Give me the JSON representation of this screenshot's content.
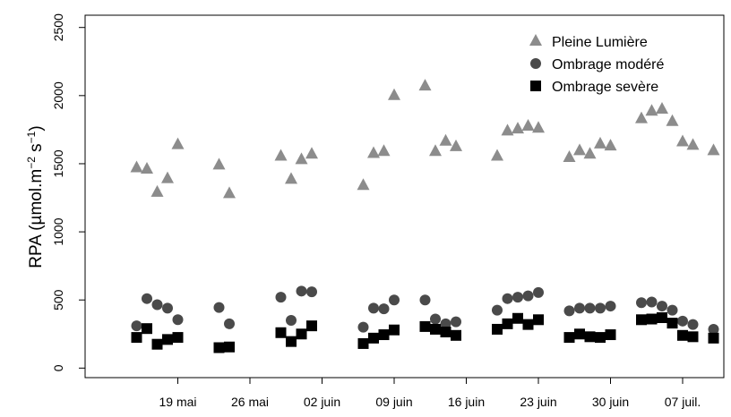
{
  "chart_data": {
    "type": "scatter",
    "title": "",
    "xlabel": "",
    "ylabel": "RPA (µmol.m⁻² s⁻¹)",
    "ylabel_parts": {
      "main": "RPA (",
      "mu": "µ",
      "unit": "mol.m",
      "exp1": "−2",
      "space": " s",
      "exp2": "−1",
      "close": ")"
    },
    "x_axis": {
      "type": "date",
      "range": [
        "2011-05-10",
        "2011-07-11"
      ],
      "ticks": [
        "2011-05-19",
        "2011-05-26",
        "2011-06-02",
        "2011-06-09",
        "2011-06-16",
        "2011-06-23",
        "2011-06-30",
        "2011-07-07"
      ],
      "tick_labels": [
        "19 mai",
        "26 mai",
        "02 juin",
        "09 juin",
        "16 juin",
        "23 juin",
        "30 juin",
        "07 juil."
      ]
    },
    "y_axis": {
      "range": [
        -70,
        2590
      ],
      "ticks": [
        0,
        500,
        1000,
        1500,
        2000,
        2500
      ],
      "tick_labels": [
        "0",
        "500",
        "1000",
        "1500",
        "2000",
        "2500"
      ]
    },
    "grid": false,
    "legend": {
      "position": "top-right"
    },
    "series": [
      {
        "name": "Pleine Lumière",
        "marker": "triangle",
        "color": "#8c8c8c",
        "points": [
          [
            "2011-05-15",
            1470
          ],
          [
            "2011-05-16",
            1460
          ],
          [
            "2011-05-17",
            1290
          ],
          [
            "2011-05-18",
            1390
          ],
          [
            "2011-05-19",
            1640
          ],
          [
            "2011-05-23",
            1490
          ],
          [
            "2011-05-24",
            1280
          ],
          [
            "2011-05-29",
            1555
          ],
          [
            "2011-05-30",
            1385
          ],
          [
            "2011-05-31",
            1530
          ],
          [
            "2011-06-01",
            1570
          ],
          [
            "2011-06-06",
            1340
          ],
          [
            "2011-06-07",
            1575
          ],
          [
            "2011-06-08",
            1590
          ],
          [
            "2011-06-09",
            2000
          ],
          [
            "2011-06-12",
            2070
          ],
          [
            "2011-06-13",
            1590
          ],
          [
            "2011-06-14",
            1665
          ],
          [
            "2011-06-15",
            1625
          ],
          [
            "2011-06-19",
            1555
          ],
          [
            "2011-06-20",
            1740
          ],
          [
            "2011-06-21",
            1755
          ],
          [
            "2011-06-22",
            1775
          ],
          [
            "2011-06-23",
            1760
          ],
          [
            "2011-06-26",
            1545
          ],
          [
            "2011-06-27",
            1595
          ],
          [
            "2011-06-28",
            1570
          ],
          [
            "2011-06-29",
            1645
          ],
          [
            "2011-06-30",
            1630
          ],
          [
            "2011-07-03",
            1830
          ],
          [
            "2011-07-04",
            1885
          ],
          [
            "2011-07-05",
            1900
          ],
          [
            "2011-07-06",
            1810
          ],
          [
            "2011-07-07",
            1660
          ],
          [
            "2011-07-08",
            1635
          ],
          [
            "2011-07-10",
            1595
          ]
        ]
      },
      {
        "name": "Ombrage modéré",
        "marker": "circle",
        "color": "#4a4a4a",
        "points": [
          [
            "2011-05-15",
            310
          ],
          [
            "2011-05-16",
            510
          ],
          [
            "2011-05-17",
            465
          ],
          [
            "2011-05-18",
            440
          ],
          [
            "2011-05-19",
            355
          ],
          [
            "2011-05-23",
            445
          ],
          [
            "2011-05-24",
            325
          ],
          [
            "2011-05-29",
            520
          ],
          [
            "2011-05-30",
            350
          ],
          [
            "2011-05-31",
            565
          ],
          [
            "2011-06-01",
            560
          ],
          [
            "2011-06-06",
            300
          ],
          [
            "2011-06-07",
            440
          ],
          [
            "2011-06-08",
            435
          ],
          [
            "2011-06-09",
            500
          ],
          [
            "2011-06-12",
            500
          ],
          [
            "2011-06-13",
            360
          ],
          [
            "2011-06-14",
            325
          ],
          [
            "2011-06-15",
            340
          ],
          [
            "2011-06-19",
            425
          ],
          [
            "2011-06-20",
            510
          ],
          [
            "2011-06-21",
            520
          ],
          [
            "2011-06-22",
            530
          ],
          [
            "2011-06-23",
            555
          ],
          [
            "2011-06-26",
            420
          ],
          [
            "2011-06-27",
            440
          ],
          [
            "2011-06-28",
            440
          ],
          [
            "2011-06-29",
            440
          ],
          [
            "2011-06-30",
            455
          ],
          [
            "2011-07-03",
            480
          ],
          [
            "2011-07-04",
            485
          ],
          [
            "2011-07-05",
            455
          ],
          [
            "2011-07-06",
            425
          ],
          [
            "2011-07-07",
            345
          ],
          [
            "2011-07-08",
            320
          ],
          [
            "2011-07-10",
            285
          ]
        ]
      },
      {
        "name": "Ombrage sevère",
        "marker": "square",
        "color": "#000000",
        "points": [
          [
            "2011-05-15",
            225
          ],
          [
            "2011-05-16",
            290
          ],
          [
            "2011-05-17",
            175
          ],
          [
            "2011-05-18",
            210
          ],
          [
            "2011-05-19",
            225
          ],
          [
            "2011-05-23",
            150
          ],
          [
            "2011-05-24",
            155
          ],
          [
            "2011-05-29",
            260
          ],
          [
            "2011-05-30",
            195
          ],
          [
            "2011-05-31",
            250
          ],
          [
            "2011-06-01",
            310
          ],
          [
            "2011-06-06",
            180
          ],
          [
            "2011-06-07",
            220
          ],
          [
            "2011-06-08",
            245
          ],
          [
            "2011-06-09",
            280
          ],
          [
            "2011-06-12",
            305
          ],
          [
            "2011-06-13",
            285
          ],
          [
            "2011-06-14",
            265
          ],
          [
            "2011-06-15",
            240
          ],
          [
            "2011-06-19",
            285
          ],
          [
            "2011-06-20",
            325
          ],
          [
            "2011-06-21",
            365
          ],
          [
            "2011-06-22",
            320
          ],
          [
            "2011-06-23",
            355
          ],
          [
            "2011-06-26",
            225
          ],
          [
            "2011-06-27",
            250
          ],
          [
            "2011-06-28",
            230
          ],
          [
            "2011-06-29",
            225
          ],
          [
            "2011-06-30",
            245
          ],
          [
            "2011-07-03",
            355
          ],
          [
            "2011-07-04",
            360
          ],
          [
            "2011-07-05",
            370
          ],
          [
            "2011-07-06",
            330
          ],
          [
            "2011-07-07",
            240
          ],
          [
            "2011-07-08",
            230
          ],
          [
            "2011-07-10",
            220
          ]
        ]
      }
    ]
  }
}
